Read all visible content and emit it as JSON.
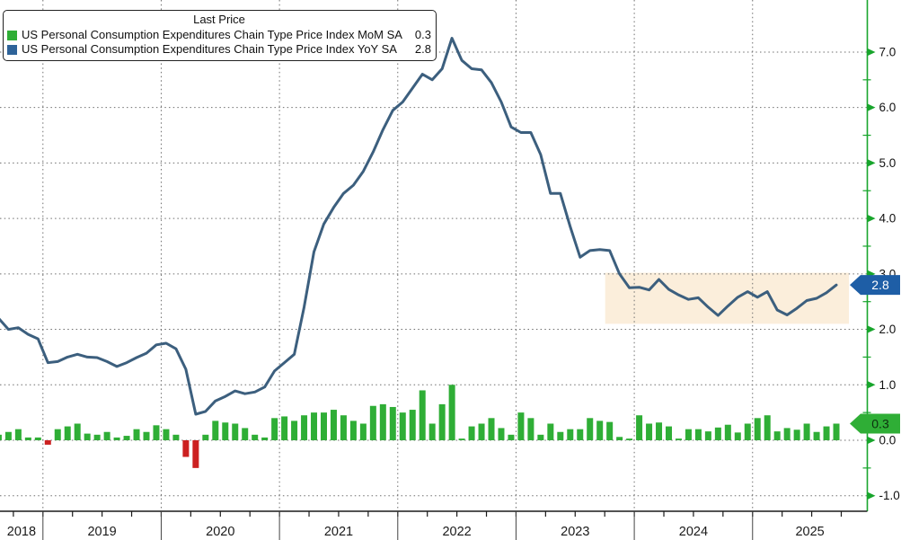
{
  "legend": {
    "title": "Last Price",
    "series": [
      {
        "label": "US Personal Consumption Expenditures Chain Type Price Index MoM SA",
        "value": "0.3",
        "color": "#2fae36"
      },
      {
        "label": "US Personal Consumption Expenditures Chain Type Price Index YoY SA",
        "value": "2.8",
        "color": "#2e6399"
      }
    ]
  },
  "chart_data": {
    "type": "combo",
    "frequency": "monthly",
    "x_start": "2018-08",
    "x_end": "2025-09",
    "x_axis": {
      "year_labels": [
        "2018",
        "2019",
        "2020",
        "2021",
        "2022",
        "2023",
        "2024",
        "2025"
      ],
      "label_color": "#1a1a1a"
    },
    "y_axis": {
      "side": "right",
      "ticks": [
        7.0,
        6.0,
        5.0,
        4.0,
        3.0,
        2.0,
        1.0,
        0.0,
        -1.0
      ],
      "minor_step": 0.5,
      "axis_color": "#18a52c",
      "label_color": "#111111",
      "ylim": [
        -1.35,
        7.6
      ]
    },
    "grid": {
      "horizontal": true,
      "vertical_on_years": true,
      "style": "dotted",
      "color": "#6e6e6e"
    },
    "series": [
      {
        "name": "US Personal Consumption Expenditures Chain Type Price Index MoM SA",
        "type": "bar",
        "color": "#2fae36",
        "negative_color": "#cc2020",
        "last_value": 0.3,
        "values": [
          0.1,
          0.15,
          0.2,
          0.05,
          0.05,
          -0.08,
          0.2,
          0.25,
          0.3,
          0.12,
          0.1,
          0.15,
          0.05,
          0.08,
          0.2,
          0.15,
          0.27,
          0.2,
          0.1,
          -0.3,
          -0.5,
          0.1,
          0.35,
          0.32,
          0.3,
          0.22,
          0.1,
          0.05,
          0.4,
          0.43,
          0.35,
          0.45,
          0.5,
          0.5,
          0.55,
          0.45,
          0.35,
          0.3,
          0.62,
          0.65,
          0.6,
          0.5,
          0.55,
          0.9,
          0.3,
          0.65,
          1.0,
          0.03,
          0.25,
          0.3,
          0.4,
          0.22,
          0.1,
          0.5,
          0.4,
          0.1,
          0.3,
          0.15,
          0.2,
          0.2,
          0.4,
          0.35,
          0.33,
          0.06,
          0.03,
          0.45,
          0.3,
          0.32,
          0.25,
          0.03,
          0.2,
          0.2,
          0.16,
          0.23,
          0.28,
          0.14,
          0.3,
          0.4,
          0.45,
          0.16,
          0.22,
          0.19,
          0.3,
          0.15,
          0.25,
          0.3
        ]
      },
      {
        "name": "US Personal Consumption Expenditures Chain Type Price Index YoY SA",
        "type": "line",
        "color": "#3c5f7e",
        "last_value": 2.8,
        "values": [
          2.2,
          2.0,
          2.03,
          1.91,
          1.83,
          1.4,
          1.42,
          1.5,
          1.55,
          1.5,
          1.49,
          1.42,
          1.33,
          1.4,
          1.49,
          1.57,
          1.72,
          1.75,
          1.65,
          1.28,
          0.47,
          0.52,
          0.71,
          0.79,
          0.89,
          0.84,
          0.87,
          0.96,
          1.25,
          1.4,
          1.55,
          2.4,
          3.4,
          3.9,
          4.2,
          4.45,
          4.6,
          4.85,
          5.2,
          5.6,
          5.95,
          6.1,
          6.35,
          6.6,
          6.5,
          6.7,
          7.25,
          6.85,
          6.7,
          6.68,
          6.45,
          6.1,
          5.65,
          5.55,
          5.55,
          5.15,
          4.45,
          4.45,
          3.85,
          3.3,
          3.42,
          3.44,
          3.42,
          3.0,
          2.75,
          2.76,
          2.71,
          2.9,
          2.72,
          2.62,
          2.54,
          2.57,
          2.4,
          2.25,
          2.42,
          2.58,
          2.68,
          2.58,
          2.68,
          2.35,
          2.26,
          2.38,
          2.52,
          2.56,
          2.66,
          2.8
        ]
      }
    ],
    "last_price_badges": [
      {
        "text": "2.8",
        "value": 2.8,
        "fill": "#1e5ea6",
        "text_color": "#ffffff"
      },
      {
        "text": "0.3",
        "value": 0.3,
        "fill": "#2fae36",
        "text_color": "#0d300f"
      }
    ],
    "highlight_band": {
      "x_start": "2023-10",
      "x_end": "2025-09",
      "value_top": 3.02,
      "value_bottom": 2.1,
      "color": "#fbeedb"
    }
  }
}
